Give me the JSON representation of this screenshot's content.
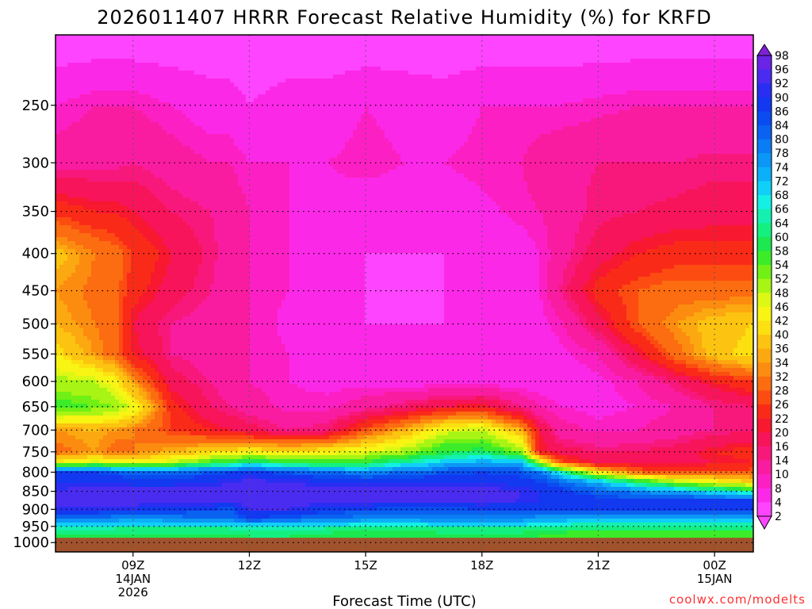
{
  "chart_data": {
    "type": "heatmap",
    "title": "2026011407 HRRR Forecast Relative Humidity (%) for KRFD",
    "xlabel": "Forecast Time (UTC)",
    "ylabel": "",
    "credit": "coolwx.com/modelts",
    "x_axis": {
      "unit": "hours after 2026-01-14 00Z",
      "range": [
        7,
        25
      ],
      "ticks": [
        {
          "t": 9,
          "lines": [
            "09Z",
            "14JAN",
            "2026"
          ]
        },
        {
          "t": 12,
          "lines": [
            "12Z"
          ]
        },
        {
          "t": 15,
          "lines": [
            "15Z"
          ]
        },
        {
          "t": 18,
          "lines": [
            "18Z"
          ]
        },
        {
          "t": 21,
          "lines": [
            "21Z"
          ]
        },
        {
          "t": 24,
          "lines": [
            "00Z",
            "15JAN"
          ]
        }
      ]
    },
    "y_axis": {
      "unit": "pressure (hPa)",
      "scale": "log",
      "range": [
        1030,
        200
      ],
      "ticks": [
        250,
        300,
        350,
        400,
        450,
        500,
        550,
        600,
        650,
        700,
        750,
        800,
        850,
        900,
        950,
        1000
      ]
    },
    "grid": true,
    "ground_pressure": 985,
    "colorbar": {
      "labels": [
        98,
        96,
        92,
        90,
        86,
        84,
        80,
        78,
        74,
        72,
        68,
        66,
        64,
        60,
        58,
        54,
        52,
        48,
        46,
        42,
        40,
        36,
        34,
        32,
        28,
        26,
        22,
        20,
        16,
        14,
        10,
        8,
        4,
        2
      ],
      "colors": [
        "#7d22d8",
        "#6a24e6",
        "#4a2cf0",
        "#2a2ef2",
        "#1238f0",
        "#0a4cf0",
        "#0a62f0",
        "#0a7cf4",
        "#0c96f6",
        "#0cb0f8",
        "#10d0f8",
        "#14f0e4",
        "#14f0b0",
        "#14f080",
        "#1ce850",
        "#3cec28",
        "#70f014",
        "#a8f414",
        "#dcf814",
        "#f8f414",
        "#fce010",
        "#fcc410",
        "#fca810",
        "#fc8c10",
        "#fc6c10",
        "#fc4c12",
        "#fa2a18",
        "#f81830",
        "#f8145a",
        "#f8187c",
        "#fa1ca0",
        "#fc20c4",
        "#fc28e8",
        "#ff44ff"
      ]
    },
    "times": [
      7,
      8,
      8.5,
      9,
      10,
      11,
      11.5,
      12,
      13,
      14,
      15,
      16,
      17,
      18,
      19,
      19.5,
      20,
      21,
      22,
      23,
      24,
      25
    ],
    "levels": [
      200,
      250,
      300,
      350,
      400,
      450,
      500,
      550,
      600,
      650,
      700,
      750,
      775,
      800,
      825,
      850,
      875,
      900,
      925,
      950,
      975
    ],
    "rh": [
      [
        1,
        1,
        1,
        1,
        1,
        1,
        1,
        1,
        1,
        1,
        1,
        1,
        1,
        1,
        1,
        1,
        1,
        1,
        1,
        1,
        1,
        1
      ],
      [
        8,
        10,
        10,
        10,
        8,
        6,
        6,
        4,
        6,
        6,
        8,
        7,
        6,
        8,
        8,
        8,
        8,
        9,
        10,
        10,
        10,
        10
      ],
      [
        12,
        13,
        13,
        14,
        12,
        10,
        10,
        8,
        8,
        8,
        9,
        8,
        8,
        9,
        10,
        12,
        13,
        14,
        14,
        14,
        15,
        15
      ],
      [
        25,
        22,
        22,
        20,
        16,
        14,
        13,
        10,
        8,
        7,
        6,
        6,
        6,
        7,
        9,
        10,
        12,
        15,
        16,
        17,
        18,
        18
      ],
      [
        38,
        32,
        30,
        26,
        20,
        15,
        12,
        10,
        8,
        5,
        4,
        4,
        4,
        5,
        6,
        8,
        12,
        18,
        22,
        24,
        24,
        24
      ],
      [
        34,
        31,
        30,
        24,
        18,
        14,
        12,
        10,
        8,
        5,
        4,
        3,
        4,
        5,
        6,
        8,
        14,
        24,
        28,
        30,
        30,
        30
      ],
      [
        36,
        32,
        30,
        20,
        14,
        12,
        11,
        10,
        7,
        5,
        4,
        4,
        4,
        5,
        6,
        7,
        9,
        18,
        28,
        34,
        38,
        40
      ],
      [
        42,
        34,
        30,
        22,
        14,
        12,
        11,
        10,
        8,
        6,
        5,
        5,
        5,
        5,
        6,
        6,
        7,
        10,
        20,
        30,
        38,
        42
      ],
      [
        50,
        48,
        44,
        34,
        18,
        14,
        12,
        10,
        8,
        7,
        7,
        6,
        6,
        6,
        6,
        6,
        6,
        7,
        10,
        16,
        22,
        26
      ],
      [
        56,
        54,
        52,
        46,
        24,
        16,
        14,
        12,
        9,
        9,
        12,
        16,
        20,
        22,
        14,
        10,
        8,
        7,
        8,
        10,
        14,
        16
      ],
      [
        34,
        36,
        34,
        32,
        26,
        22,
        20,
        18,
        14,
        16,
        28,
        36,
        46,
        48,
        36,
        20,
        12,
        9,
        10,
        12,
        14,
        16
      ],
      [
        30,
        34,
        30,
        32,
        36,
        40,
        42,
        44,
        42,
        44,
        46,
        50,
        58,
        60,
        52,
        22,
        18,
        16,
        16,
        18,
        22,
        24
      ],
      [
        42,
        48,
        46,
        44,
        48,
        56,
        58,
        62,
        58,
        56,
        58,
        64,
        70,
        74,
        72,
        50,
        28,
        18,
        18,
        18,
        20,
        22
      ],
      [
        86,
        86,
        84,
        82,
        82,
        84,
        86,
        88,
        84,
        80,
        78,
        80,
        84,
        86,
        84,
        80,
        66,
        42,
        30,
        28,
        28,
        28
      ],
      [
        90,
        90,
        90,
        88,
        88,
        90,
        92,
        93,
        92,
        90,
        90,
        90,
        90,
        90,
        88,
        86,
        82,
        72,
        60,
        50,
        44,
        40
      ],
      [
        92,
        94,
        94,
        94,
        94,
        94,
        94,
        95,
        94,
        94,
        94,
        94,
        94,
        94,
        92,
        90,
        88,
        82,
        78,
        74,
        68,
        62
      ],
      [
        94,
        94,
        94,
        94,
        94,
        94,
        94,
        95,
        94,
        94,
        94,
        94,
        94,
        94,
        92,
        90,
        90,
        88,
        86,
        86,
        86,
        86
      ],
      [
        90,
        90,
        90,
        90,
        88,
        86,
        84,
        92,
        92,
        88,
        86,
        84,
        84,
        86,
        86,
        86,
        86,
        86,
        86,
        86,
        86,
        86
      ],
      [
        80,
        80,
        78,
        76,
        78,
        80,
        82,
        86,
        84,
        80,
        78,
        78,
        78,
        78,
        78,
        76,
        76,
        74,
        72,
        72,
        72,
        72
      ],
      [
        68,
        68,
        66,
        66,
        66,
        66,
        66,
        68,
        68,
        66,
        64,
        64,
        66,
        66,
        66,
        64,
        64,
        62,
        62,
        62,
        62,
        62
      ],
      [
        60,
        58,
        58,
        58,
        58,
        58,
        58,
        60,
        60,
        58,
        58,
        58,
        58,
        58,
        58,
        58,
        56,
        56,
        56,
        56,
        56,
        56
      ]
    ]
  }
}
